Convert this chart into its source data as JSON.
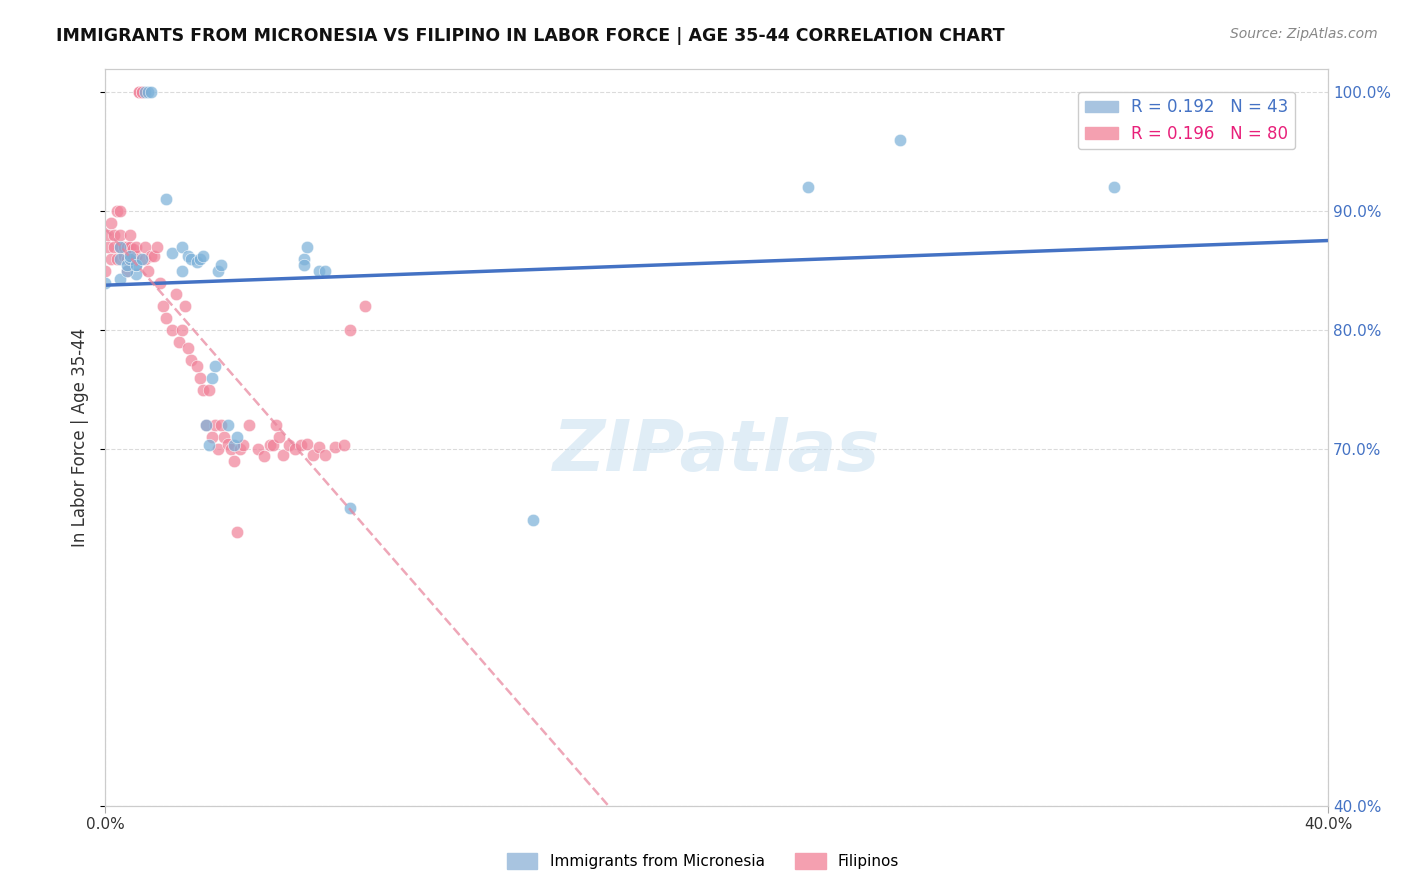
{
  "title": "IMMIGRANTS FROM MICRONESIA VS FILIPINO IN LABOR FORCE | AGE 35-44 CORRELATION CHART",
  "source": "Source: ZipAtlas.com",
  "ylabel": "In Labor Force | Age 35-44",
  "ytick_labels": [
    "40.0%",
    "70.0%",
    "80.0%",
    "90.0%",
    "100.0%"
  ],
  "ytick_values": [
    0.4,
    0.7,
    0.8,
    0.9,
    1.0
  ],
  "xlim": [
    0.0,
    0.4
  ],
  "ylim": [
    0.4,
    1.02
  ],
  "legend_entries": [
    {
      "label": "R = 0.192   N = 43",
      "color": "#a8c4e0"
    },
    {
      "label": "R = 0.196   N = 80",
      "color": "#f4a0b0"
    }
  ],
  "micronesia_color": "#7ab0d8",
  "filipino_color": "#f08098",
  "trendline_mic_color": "#4472c4",
  "trendline_fil_color": "#e8829a",
  "watermark": "ZIPatlas",
  "background_color": "#ffffff",
  "grid_color": "#cccccc",
  "scatter_alpha": 0.7,
  "scatter_size": 80,
  "micronesia_points_x": [
    0.0,
    0.01,
    0.01,
    0.005,
    0.005,
    0.005,
    0.007,
    0.007,
    0.008,
    0.008,
    0.01,
    0.012,
    0.013,
    0.014,
    0.015,
    0.02,
    0.022,
    0.025,
    0.025,
    0.027,
    0.028,
    0.03,
    0.031,
    0.032,
    0.033,
    0.034,
    0.035,
    0.036,
    0.037,
    0.038,
    0.04,
    0.042,
    0.043,
    0.065,
    0.065,
    0.066,
    0.07,
    0.072,
    0.23,
    0.33,
    0.14,
    0.08,
    0.26
  ],
  "micronesia_points_y": [
    0.84,
    0.847,
    0.855,
    0.843,
    0.86,
    0.87,
    0.85,
    0.855,
    0.86,
    0.862,
    0.855,
    0.86,
    1.0,
    1.0,
    1.0,
    0.91,
    0.865,
    0.87,
    0.85,
    0.862,
    0.86,
    0.857,
    0.86,
    0.862,
    0.72,
    0.703,
    0.76,
    0.77,
    0.85,
    0.855,
    0.72,
    0.703,
    0.71,
    0.86,
    0.855,
    0.87,
    0.85,
    0.85,
    0.92,
    0.92,
    0.64,
    0.65,
    0.96
  ],
  "filipino_points_x": [
    0.0,
    0.001,
    0.001,
    0.002,
    0.002,
    0.003,
    0.003,
    0.004,
    0.004,
    0.005,
    0.005,
    0.005,
    0.006,
    0.006,
    0.007,
    0.007,
    0.007,
    0.008,
    0.008,
    0.008,
    0.008,
    0.009,
    0.009,
    0.01,
    0.01,
    0.011,
    0.011,
    0.012,
    0.012,
    0.013,
    0.013,
    0.014,
    0.015,
    0.016,
    0.017,
    0.018,
    0.019,
    0.02,
    0.022,
    0.023,
    0.024,
    0.025,
    0.026,
    0.027,
    0.028,
    0.03,
    0.031,
    0.032,
    0.033,
    0.034,
    0.035,
    0.036,
    0.037,
    0.038,
    0.039,
    0.04,
    0.041,
    0.042,
    0.043,
    0.044,
    0.045,
    0.047,
    0.05,
    0.052,
    0.054,
    0.055,
    0.056,
    0.057,
    0.058,
    0.06,
    0.062,
    0.064,
    0.066,
    0.068,
    0.07,
    0.072,
    0.075,
    0.078,
    0.08,
    0.085
  ],
  "filipino_points_y": [
    0.85,
    0.87,
    0.88,
    0.86,
    0.89,
    0.87,
    0.88,
    0.86,
    0.9,
    0.88,
    0.87,
    0.9,
    0.862,
    0.87,
    0.86,
    0.87,
    0.85,
    0.86,
    0.87,
    0.88,
    0.862,
    0.86,
    0.868,
    0.862,
    0.87,
    1.0,
    1.0,
    1.0,
    1.0,
    0.87,
    0.86,
    0.85,
    0.862,
    0.862,
    0.87,
    0.84,
    0.82,
    0.81,
    0.8,
    0.83,
    0.79,
    0.8,
    0.82,
    0.785,
    0.775,
    0.77,
    0.76,
    0.75,
    0.72,
    0.75,
    0.71,
    0.72,
    0.7,
    0.72,
    0.71,
    0.704,
    0.7,
    0.69,
    0.63,
    0.7,
    0.703,
    0.72,
    0.7,
    0.694,
    0.703,
    0.703,
    0.72,
    0.71,
    0.695,
    0.703,
    0.7,
    0.703,
    0.704,
    0.695,
    0.702,
    0.695,
    0.702,
    0.703,
    0.8,
    0.82
  ]
}
